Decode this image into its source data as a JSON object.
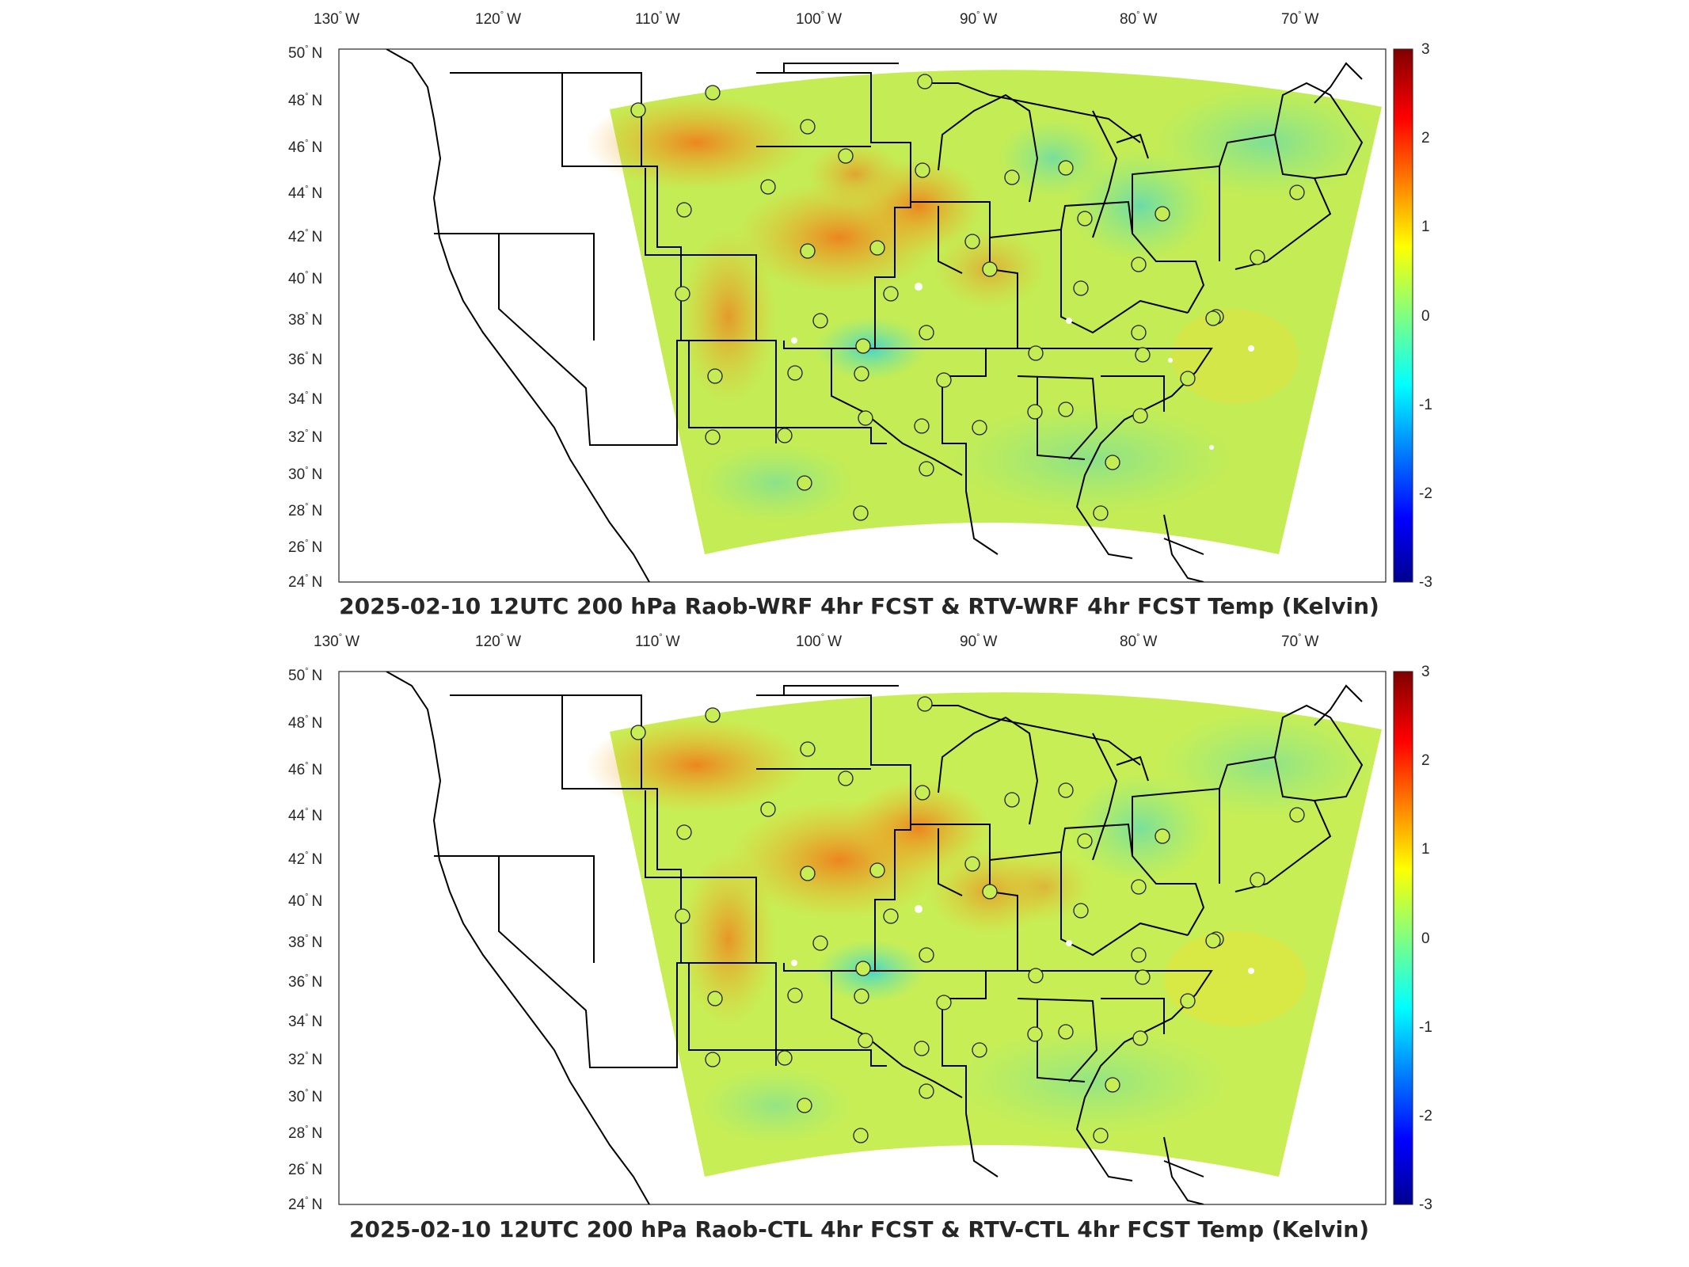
{
  "panels": [
    {
      "title": "2025-02-10 12UTC 200 hPa Raob-WRF 4hr FCST & RTV-WRF 4hr FCST Temp (Kelvin)"
    },
    {
      "title": "2025-02-10 12UTC 200 hPa Raob-CTL 4hr FCST & RTV-CTL 4hr FCST Temp (Kelvin)"
    }
  ],
  "axes": {
    "lon_labels": [
      "130",
      "120",
      "110",
      "100",
      "90",
      "80",
      "70"
    ],
    "lon_suffix": "W",
    "lat_labels": [
      "50",
      "48",
      "46",
      "44",
      "42",
      "40",
      "38",
      "36",
      "34",
      "32",
      "30",
      "28",
      "26",
      "24"
    ],
    "lat_suffix": "N",
    "degree_symbol": "°"
  },
  "colorbar": {
    "ticks": [
      "3",
      "2",
      "1",
      "0",
      "-1",
      "-2",
      "-3"
    ],
    "range": [
      -3,
      3
    ],
    "colormap": "jet",
    "colors": [
      "#00008f",
      "#0000ff",
      "#00ffff",
      "#80ff80",
      "#ffff00",
      "#ff0000",
      "#800000"
    ]
  },
  "map_style": {
    "field_background": "#c8ee52",
    "boundaries_color": "#000000",
    "station_marker": "circle"
  }
}
